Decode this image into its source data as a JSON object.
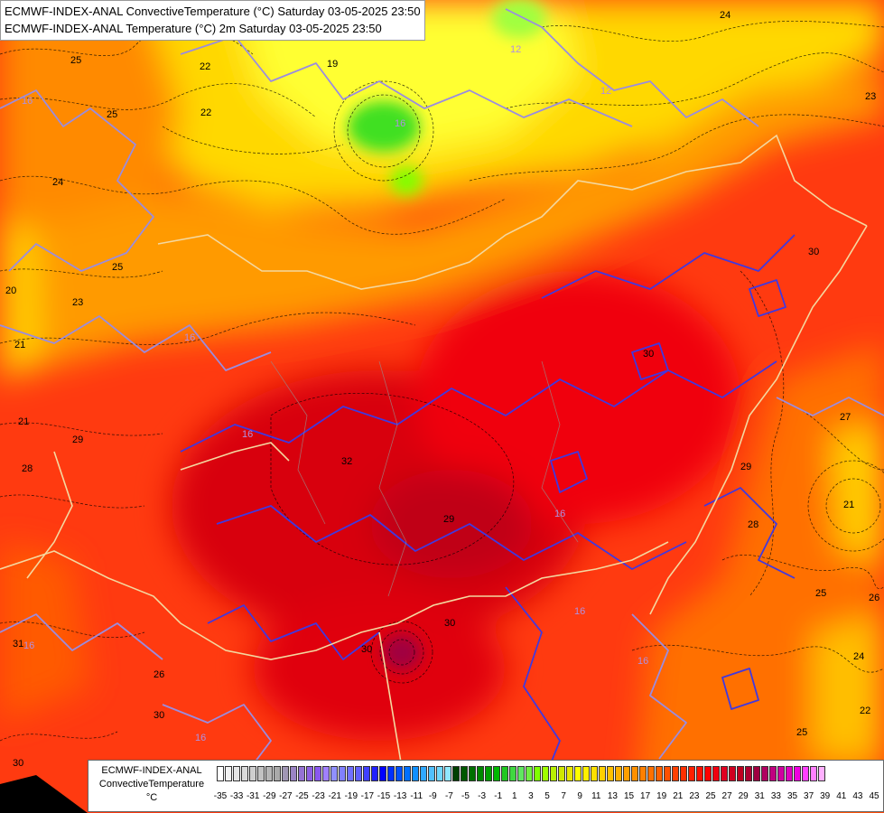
{
  "titles": {
    "line1": "ECMWF-INDEX-ANAL ConvectiveTemperature (°C) Saturday 03-05-2025 23:50",
    "line2": "ECMWF-INDEX-ANAL Temperature (°C) 2m Saturday 03-05-2025 23:50"
  },
  "legend": {
    "name_line1": "ECMWF-INDEX-ANAL",
    "name_line2": "ConvectiveTemperature",
    "unit": "°C",
    "ticks": [
      "-35",
      "-33",
      "-31",
      "-29",
      "-27",
      "-25",
      "-23",
      "-21",
      "-19",
      "-17",
      "-15",
      "-13",
      "-11",
      "-9",
      "-7",
      "-5",
      "-3",
      "-1",
      "1",
      "3",
      "5",
      "7",
      "9",
      "11",
      "13",
      "15",
      "17",
      "19",
      "21",
      "23",
      "25",
      "27",
      "29",
      "31",
      "33",
      "35",
      "37",
      "39",
      "41",
      "43",
      "45"
    ],
    "colors": [
      "#ffffff",
      "#f2f2f2",
      "#e6e6e6",
      "#dadada",
      "#cecece",
      "#c2c2c2",
      "#b6b6b6",
      "#aaaaaa",
      "#a096b4",
      "#9a84c4",
      "#9472d4",
      "#8e60e4",
      "#8a58f0",
      "#a080ff",
      "#9090ff",
      "#8080ff",
      "#7070ff",
      "#6060ff",
      "#4040ff",
      "#2020ff",
      "#0000ff",
      "#0030ff",
      "#0050ff",
      "#0070ff",
      "#1090ff",
      "#30a8ff",
      "#50c0ff",
      "#70d8ff",
      "#90e8ff",
      "#004000",
      "#005800",
      "#007000",
      "#008800",
      "#00a000",
      "#00b800",
      "#20c820",
      "#40d840",
      "#60e860",
      "#70f040",
      "#80ff00",
      "#a0ff00",
      "#b8f000",
      "#d0e800",
      "#e8e800",
      "#ffff00",
      "#fff000",
      "#ffe000",
      "#ffd000",
      "#ffc000",
      "#ffb000",
      "#ffa000",
      "#ff9000",
      "#ff8000",
      "#ff7000",
      "#ff6000",
      "#ff5000",
      "#ff4000",
      "#ff3000",
      "#ff2000",
      "#ff1000",
      "#ff0000",
      "#f00010",
      "#e00020",
      "#d00020",
      "#c00020",
      "#b00030",
      "#a00040",
      "#b00060",
      "#c00080",
      "#d000a0",
      "#e000c0",
      "#f000e0",
      "#ff40ff",
      "#ff80ff",
      "#ffb0ff"
    ]
  },
  "map_labels": {
    "black": [
      "25",
      "25",
      "22",
      "24",
      "19",
      "22",
      "24",
      "23",
      "25",
      "20",
      "23",
      "21",
      "21",
      "29",
      "28",
      "32",
      "30",
      "29",
      "30",
      "30",
      "29",
      "27",
      "28",
      "25",
      "26",
      "21",
      "22",
      "24",
      "25",
      "26",
      "30",
      "30",
      "30",
      "31"
    ],
    "purple": [
      "16",
      "12",
      "12",
      "16",
      "16",
      "16",
      "16",
      "16",
      "16",
      "16",
      "16"
    ]
  }
}
